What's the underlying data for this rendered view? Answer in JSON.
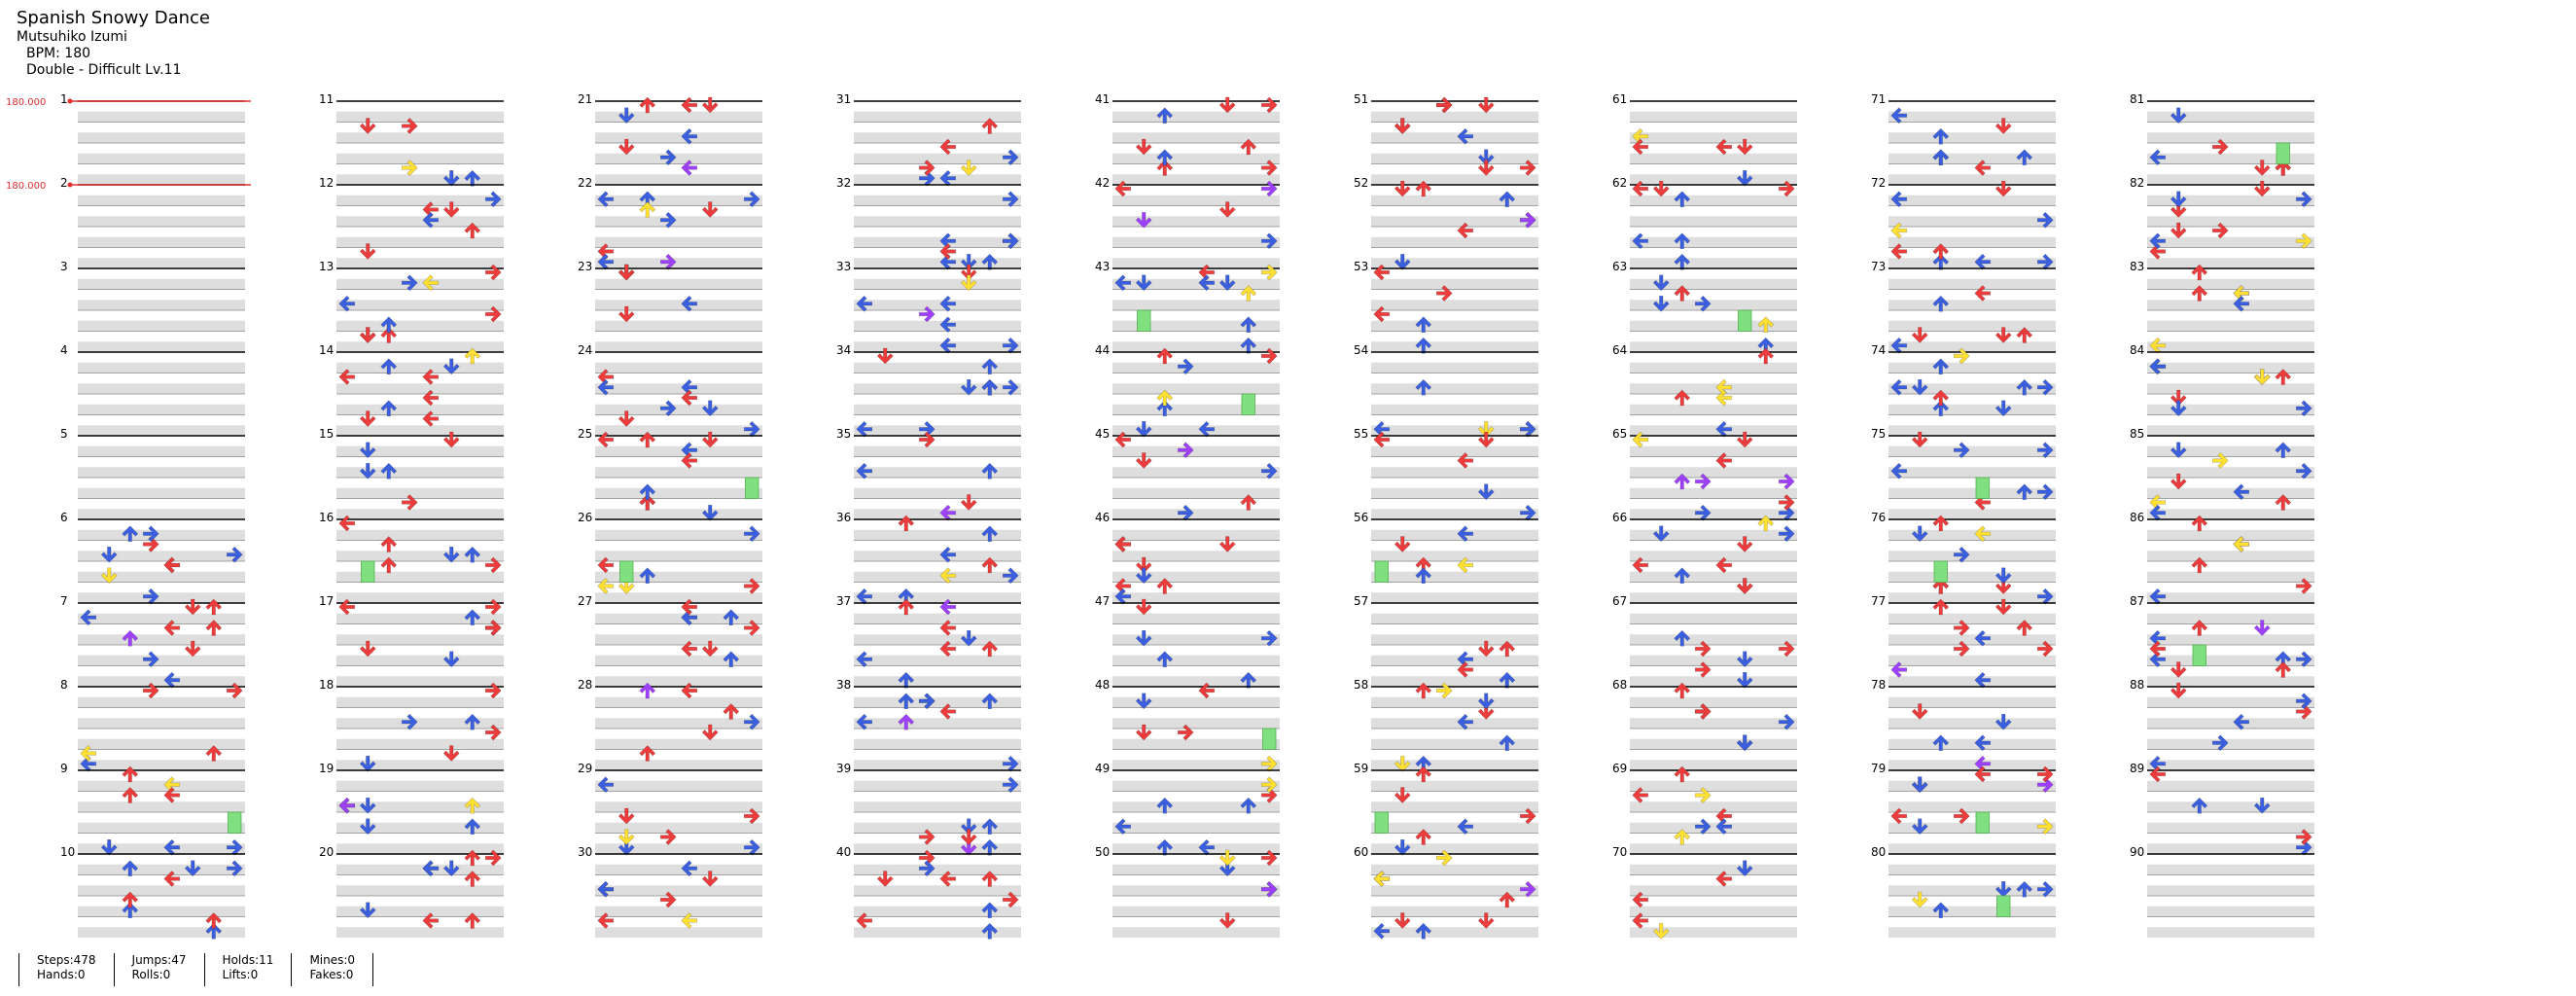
{
  "song": {
    "title": "Spanish Snowy Dance",
    "artist": "Mutsuhiko Izumi",
    "bpm_line": "BPM: 180",
    "difficulty_line": "Double - Difficult  Lv.11"
  },
  "bpm_changes": [
    {
      "measure": 1,
      "label": "180.000"
    },
    {
      "measure": 2,
      "label": "180.000"
    }
  ],
  "measures": {
    "first": 1,
    "last": 90,
    "per_column": 10,
    "columns": 9
  },
  "colors": {
    "quarter": "#ee3b3b",
    "eighth": "#3a5fe0",
    "sixteenth": "#ffe033",
    "twelfth": "#a040ff",
    "hold": "#80e080",
    "stripe": "#dedede",
    "beat_line": "#000000",
    "sub_line": "#888888",
    "bpm": "#e03030"
  },
  "icons": {
    "left": "arrow-left-icon",
    "down": "arrow-down-icon",
    "up": "arrow-up-icon",
    "right": "arrow-right-icon",
    "hold": "hold-bar-icon"
  },
  "stats": {
    "steps": "Steps:478",
    "hands": "Hands:0",
    "jumps": "Jumps:47",
    "rolls": "Rolls:0",
    "holds": "Holds:11",
    "lifts": "Lifts:0",
    "mines": "Mines:0",
    "fakes": "Fakes:0"
  }
}
